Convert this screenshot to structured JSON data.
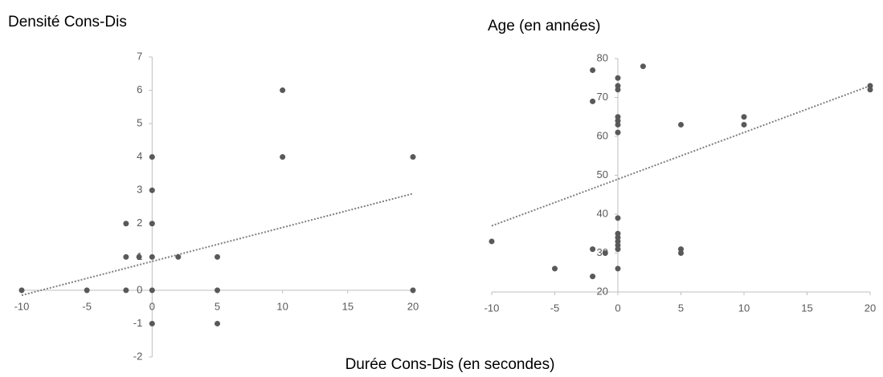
{
  "xlabel": "Durée Cons-Dis (en secondes)",
  "chart_data": [
    {
      "type": "scatter",
      "title": "Densité Cons-Dis",
      "color": "#595959",
      "x": [
        -10,
        -5,
        -2,
        -2,
        -2,
        -1,
        0,
        0,
        0,
        0,
        0,
        0,
        2,
        5,
        5,
        5,
        10,
        10,
        20,
        20
      ],
      "values": [
        0,
        0,
        2,
        1,
        0,
        1,
        4,
        3,
        2,
        1,
        0,
        -1,
        1,
        1,
        0,
        -1,
        6,
        4,
        4,
        0
      ],
      "trendline": {
        "x": [
          -10,
          20
        ],
        "values": [
          -0.15,
          2.9
        ]
      },
      "xlim": [
        -10,
        20
      ],
      "xticks": [
        -10,
        -5,
        0,
        5,
        10,
        15,
        20
      ],
      "ylim": [
        -2,
        7
      ],
      "yticks": [
        -2,
        -1,
        0,
        1,
        2,
        3,
        4,
        5,
        6,
        7
      ]
    },
    {
      "type": "scatter",
      "title": "Age (en années)",
      "color": "#595959",
      "x": [
        -10,
        -5,
        -2,
        -2,
        -2,
        -2,
        -1,
        0,
        0,
        0,
        0,
        0,
        0,
        0,
        0,
        0,
        0,
        0,
        0,
        0,
        0,
        2,
        5,
        5,
        5,
        10,
        10,
        20,
        20
      ],
      "values": [
        33,
        26,
        77,
        69,
        31,
        24,
        30,
        75,
        73,
        72,
        65,
        64,
        63,
        61,
        39,
        35,
        34,
        33,
        32,
        31,
        26,
        78,
        63,
        31,
        30,
        65,
        63,
        73,
        72
      ],
      "trendline": {
        "x": [
          -10,
          20
        ],
        "values": [
          37,
          73
        ]
      },
      "xlim": [
        -10,
        20
      ],
      "xticks": [
        -10,
        -5,
        0,
        5,
        10,
        15,
        20
      ],
      "ylim": [
        20,
        80
      ],
      "yticks": [
        20,
        30,
        40,
        50,
        60,
        70,
        80
      ]
    }
  ]
}
